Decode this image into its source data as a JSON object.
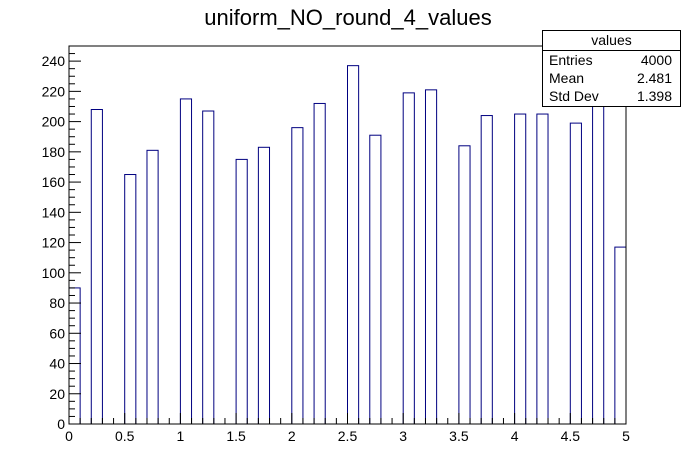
{
  "chart_data": {
    "type": "bar",
    "title": "uniform_NO_round_4_values",
    "xlim": [
      0,
      5
    ],
    "ylim": [
      0,
      250
    ],
    "x_ticks": [
      0,
      0.5,
      1,
      1.5,
      2,
      2.5,
      3,
      3.5,
      4,
      4.5,
      5
    ],
    "x_tick_labels": [
      "0",
      "0.5",
      "1",
      "1.5",
      "2",
      "2.5",
      "3",
      "3.5",
      "4",
      "4.5",
      "5"
    ],
    "y_ticks": [
      0,
      20,
      40,
      60,
      80,
      100,
      120,
      140,
      160,
      180,
      200,
      220,
      240
    ],
    "y_tick_labels": [
      "0",
      "20",
      "40",
      "60",
      "80",
      "100",
      "120",
      "140",
      "160",
      "180",
      "200",
      "220",
      "240"
    ],
    "bin_width": 0.1,
    "bins": [
      {
        "x": 0.0,
        "value": 90
      },
      {
        "x": 0.2,
        "value": 208
      },
      {
        "x": 0.5,
        "value": 165
      },
      {
        "x": 0.7,
        "value": 181
      },
      {
        "x": 1.0,
        "value": 215
      },
      {
        "x": 1.2,
        "value": 207
      },
      {
        "x": 1.5,
        "value": 175
      },
      {
        "x": 1.7,
        "value": 183
      },
      {
        "x": 2.0,
        "value": 196
      },
      {
        "x": 2.2,
        "value": 212
      },
      {
        "x": 2.5,
        "value": 237
      },
      {
        "x": 2.7,
        "value": 191
      },
      {
        "x": 3.0,
        "value": 219
      },
      {
        "x": 3.2,
        "value": 221
      },
      {
        "x": 3.5,
        "value": 184
      },
      {
        "x": 3.7,
        "value": 204
      },
      {
        "x": 4.0,
        "value": 205
      },
      {
        "x": 4.2,
        "value": 205
      },
      {
        "x": 4.5,
        "value": 199
      },
      {
        "x": 4.7,
        "value": 216
      },
      {
        "x": 4.9,
        "value": 117
      }
    ],
    "bar_color": "#000080",
    "grid": false
  },
  "stats": {
    "title": "values",
    "rows": [
      {
        "label": "Entries",
        "value": "4000"
      },
      {
        "label": "Mean",
        "value": "2.481"
      },
      {
        "label": "Std Dev",
        "value": "1.398"
      }
    ]
  }
}
